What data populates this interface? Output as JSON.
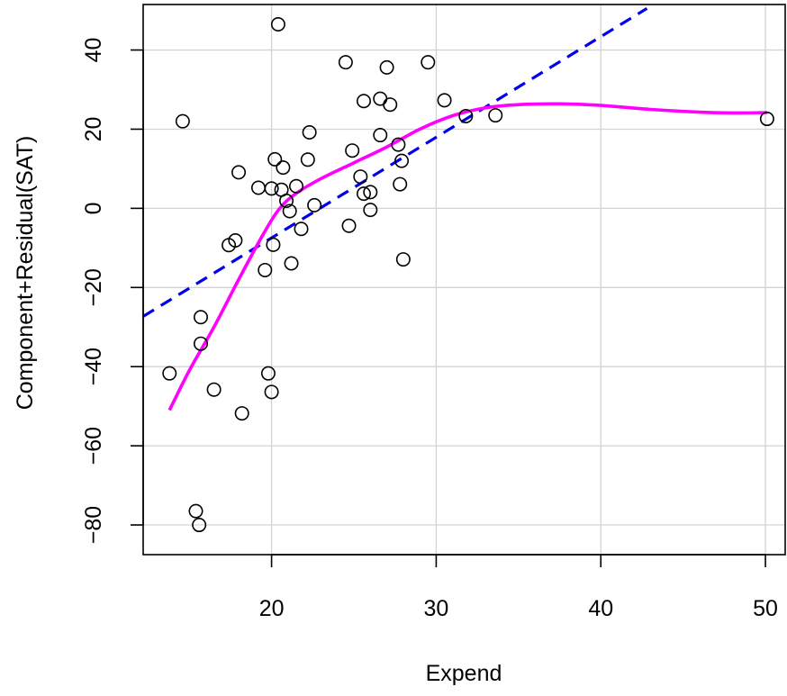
{
  "chart_data": {
    "type": "scatter",
    "title": "",
    "xlabel": "Expend",
    "ylabel": "Component+Residual(SAT)",
    "xlim": [
      12.2,
      51.2
    ],
    "ylim": [
      -87.5,
      51.5
    ],
    "xticks": [
      20,
      30,
      40,
      50
    ],
    "yticks": [
      -80,
      -60,
      -40,
      -20,
      0,
      20,
      40
    ],
    "xtick_labels": [
      "20",
      "30",
      "40",
      "50"
    ],
    "ytick_labels": [
      "−80",
      "−60",
      "−40",
      "−20",
      "0",
      "20",
      "40"
    ],
    "grid": true,
    "colors": {
      "points": "#000000",
      "linear_fit": "#0000ee",
      "smooth_fit": "#ff00ff",
      "grid": "#d3d3d3"
    },
    "points": [
      [
        13.8,
        -41.7
      ],
      [
        14.6,
        22.0
      ],
      [
        15.4,
        -76.5
      ],
      [
        15.6,
        -80.0
      ],
      [
        15.7,
        -34.2
      ],
      [
        15.7,
        -27.5
      ],
      [
        16.5,
        -45.8
      ],
      [
        17.4,
        -9.3
      ],
      [
        17.8,
        -8.1
      ],
      [
        18.0,
        9.1
      ],
      [
        18.2,
        -51.8
      ],
      [
        19.2,
        5.2
      ],
      [
        19.6,
        -15.6
      ],
      [
        19.8,
        -41.7
      ],
      [
        20.0,
        -46.4
      ],
      [
        20.0,
        5.0
      ],
      [
        20.1,
        -9.2
      ],
      [
        20.2,
        12.4
      ],
      [
        20.4,
        46.5
      ],
      [
        20.6,
        4.7
      ],
      [
        20.7,
        10.3
      ],
      [
        20.9,
        1.9
      ],
      [
        21.1,
        -0.7
      ],
      [
        21.2,
        -13.9
      ],
      [
        21.5,
        5.6
      ],
      [
        21.8,
        -5.2
      ],
      [
        22.2,
        12.3
      ],
      [
        22.3,
        19.2
      ],
      [
        22.6,
        0.8
      ],
      [
        24.5,
        36.9
      ],
      [
        24.7,
        -4.4
      ],
      [
        24.9,
        14.6
      ],
      [
        25.4,
        8.0
      ],
      [
        25.6,
        27.1
      ],
      [
        25.6,
        3.7
      ],
      [
        26.0,
        4.1
      ],
      [
        26.0,
        -0.4
      ],
      [
        26.6,
        27.7
      ],
      [
        26.6,
        18.5
      ],
      [
        27.0,
        35.6
      ],
      [
        27.2,
        26.2
      ],
      [
        27.7,
        16.1
      ],
      [
        27.8,
        6.1
      ],
      [
        27.9,
        12.0
      ],
      [
        28.0,
        -12.9
      ],
      [
        29.5,
        36.9
      ],
      [
        30.5,
        27.3
      ],
      [
        31.8,
        23.3
      ],
      [
        33.6,
        23.5
      ],
      [
        50.1,
        22.6
      ]
    ],
    "linear_fit": {
      "style": "dashed",
      "x": [
        12.2,
        42.8
      ],
      "y": [
        -27.3,
        50.5
      ]
    },
    "smooth_fit": {
      "style": "solid",
      "x": [
        13.8,
        15.0,
        16.5,
        18.0,
        19.5,
        20.5,
        21.5,
        23.0,
        25.0,
        27.0,
        29.0,
        31.0,
        33.0,
        35.0,
        37.5,
        40.0,
        43.0,
        46.0,
        48.0,
        50.1
      ],
      "y": [
        -51.0,
        -41.0,
        -30.0,
        -18.0,
        -6.5,
        0.0,
        3.8,
        7.5,
        11.5,
        15.5,
        20.0,
        23.4,
        25.4,
        26.2,
        26.4,
        26.0,
        25.0,
        24.3,
        24.1,
        24.2
      ]
    }
  }
}
